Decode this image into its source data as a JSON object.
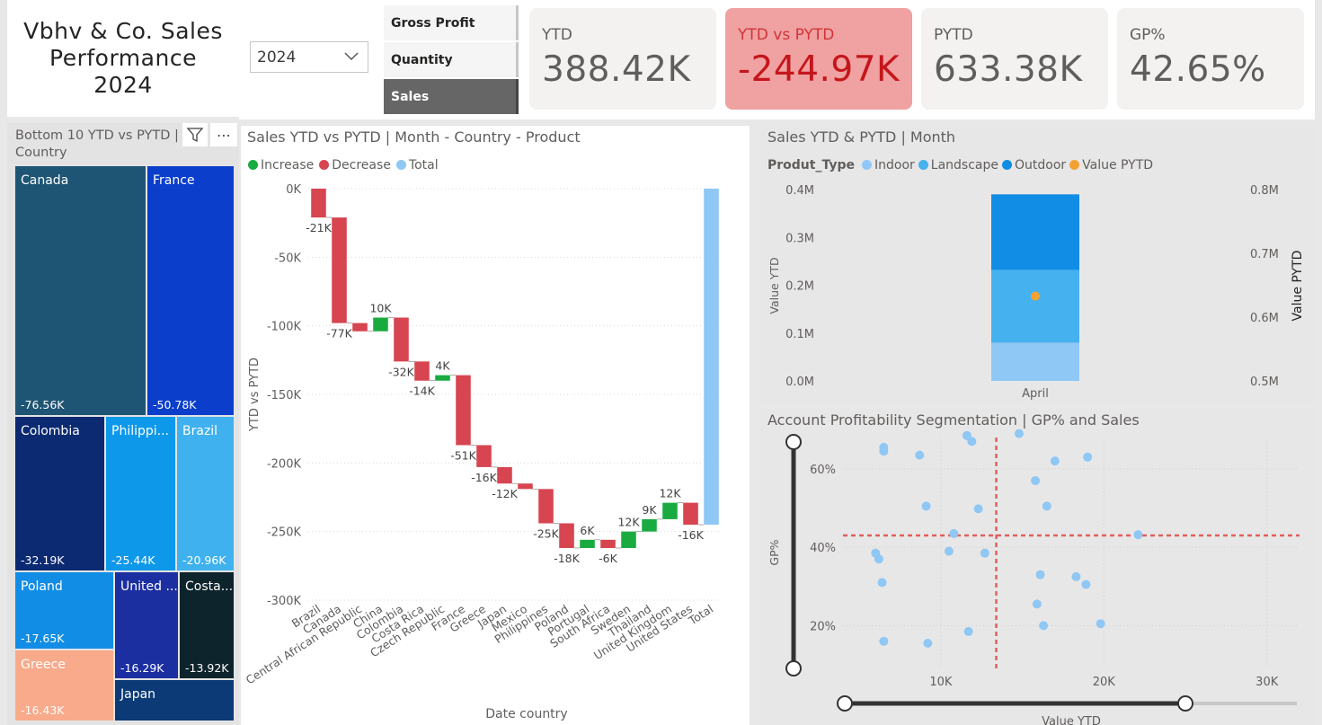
{
  "header": {
    "title": "Vbhv & Co. Sales Performance 2024",
    "year_selected": "2024",
    "buttons": [
      "Gross Profit",
      "Quantity",
      "Sales"
    ],
    "active_button": "Sales"
  },
  "kpis": [
    {
      "label": "YTD",
      "value": "388.42K"
    },
    {
      "label": "YTD vs PYTD",
      "value": "-244.97K"
    },
    {
      "label": "PYTD",
      "value": "633.38K"
    },
    {
      "label": "GP%",
      "value": "42.65%"
    }
  ],
  "colors": {
    "increase": "#1aab40",
    "decrease": "#d64550",
    "total": "#8fc7f5",
    "indoor": "#8fc7f5",
    "landscape": "#45b1ef",
    "outdoor": "#118de5",
    "pytd_marker": "#f2a232",
    "alert_bg": "#f0a1a1"
  },
  "treemap": {
    "title": "Bottom 10 YTD vs PYTD | Country",
    "items": [
      {
        "name": "Canada",
        "value": "-76.56K",
        "color": "#1e5574"
      },
      {
        "name": "France",
        "value": "-50.78K",
        "color": "#0a3ecb"
      },
      {
        "name": "Colombia",
        "value": "-32.19K",
        "color": "#0b2a72"
      },
      {
        "name": "Philippi...",
        "value": "-25.44K",
        "color": "#0e98ea"
      },
      {
        "name": "Brazil",
        "value": "-20.96K",
        "color": "#3fb1ef"
      },
      {
        "name": "Poland",
        "value": "-17.65K",
        "color": "#118de5"
      },
      {
        "name": "United ...",
        "value": "-16.29K",
        "color": "#1c2fa1"
      },
      {
        "name": "Costa...",
        "value": "-13.92K",
        "color": "#0e242c"
      },
      {
        "name": "Greece",
        "value": "-16.43K",
        "color": "#f8aa8a"
      },
      {
        "name": "Japan",
        "value": "",
        "color": "#0b3a77"
      }
    ]
  },
  "waterfall": {
    "title": "Sales YTD vs PYTD | Month - Country - Product",
    "legend": [
      "Increase",
      "Decrease",
      "Total"
    ]
  },
  "combo": {
    "title": "Sales YTD & PYTD | Month",
    "legend_title": "Produt_Type",
    "legend": [
      "Indoor",
      "Landscape",
      "Outdoor",
      "Value PYTD"
    ]
  },
  "scatter": {
    "title": "Account Profitability Segmentation | GP% and Sales"
  },
  "chart_data": [
    {
      "type": "bar",
      "subtype": "waterfall",
      "title": "Sales YTD vs PYTD | Month - Country - Product",
      "xlabel": "Date country",
      "ylabel": "YTD vs PYTD",
      "ylim": [
        -300000,
        0
      ],
      "yticks": [
        "0K",
        "-50K",
        "-100K",
        "-150K",
        "-200K",
        "-250K",
        "-300K"
      ],
      "categories": [
        "Brazil",
        "Canada",
        "Central African Republic",
        "China",
        "Colombia",
        "Costa Rica",
        "Czech Republic",
        "France",
        "Greece",
        "Japan",
        "Mexico",
        "Philippines",
        "Poland",
        "Portugal",
        "South Africa",
        "Sweden",
        "Thailand",
        "United Kingdom",
        "United States",
        "Total"
      ],
      "values": [
        -21000,
        -77000,
        -6000,
        10000,
        -32000,
        -14000,
        4000,
        -51000,
        -16000,
        -12000,
        -4000,
        -25000,
        -18000,
        6000,
        -6000,
        12000,
        9000,
        12000,
        -16000,
        -245000
      ],
      "labels": [
        "-21K",
        "-77K",
        "",
        "10K",
        "-32K",
        "-14K",
        "4K",
        "-51K",
        "-16K",
        "-12K",
        "",
        "-25K",
        "-18K",
        "6K",
        "-6K",
        "12K",
        "9K",
        "12K",
        "-16K",
        ""
      ],
      "legend": [
        "Increase",
        "Decrease",
        "Total"
      ],
      "grid": true
    },
    {
      "type": "bar",
      "subtype": "stacked-combo",
      "title": "Sales YTD & PYTD | Month",
      "categories": [
        "April"
      ],
      "series": [
        {
          "name": "Indoor",
          "values": [
            80000
          ]
        },
        {
          "name": "Landscape",
          "values": [
            152000
          ]
        },
        {
          "name": "Outdoor",
          "values": [
            158000
          ]
        },
        {
          "name": "Value PYTD",
          "values": [
            633000
          ],
          "axis": "secondary"
        }
      ],
      "ylabel": "Value YTD",
      "ylim": [
        0,
        400000
      ],
      "yticks": [
        "0.0M",
        "0.1M",
        "0.2M",
        "0.3M",
        "0.4M"
      ],
      "y2label": "Value PYTD",
      "y2lim": [
        500000,
        800000
      ],
      "y2ticks": [
        "0.5M",
        "0.6M",
        "0.7M",
        "0.8M"
      ]
    },
    {
      "type": "scatter",
      "title": "Account Profitability Segmentation | GP% and Sales",
      "xlabel": "Value YTD",
      "ylabel": "GP%",
      "xlim": [
        4000,
        32000
      ],
      "ylim": [
        10,
        68
      ],
      "xticks": [
        "10K",
        "20K",
        "30K"
      ],
      "yticks": [
        "20%",
        "40%",
        "60%"
      ],
      "reference_lines": {
        "x": 13400,
        "y": 43
      },
      "points": [
        [
          6.5,
          65.5
        ],
        [
          6.5,
          64.5
        ],
        [
          8.7,
          63.5
        ],
        [
          9.1,
          50.5
        ],
        [
          11.6,
          68.5
        ],
        [
          11.9,
          67
        ],
        [
          14.8,
          69
        ],
        [
          17.0,
          62
        ],
        [
          19.0,
          63
        ],
        [
          12.3,
          49.8
        ],
        [
          15.8,
          57
        ],
        [
          16.5,
          50.5
        ],
        [
          6.0,
          38.5
        ],
        [
          6.2,
          37
        ],
        [
          6.4,
          31
        ],
        [
          10.5,
          39
        ],
        [
          10.8,
          43.5
        ],
        [
          12.7,
          38.5
        ],
        [
          16.1,
          33
        ],
        [
          18.3,
          32.5
        ],
        [
          18.9,
          30.5
        ],
        [
          15.9,
          25.5
        ],
        [
          16.3,
          20
        ],
        [
          19.8,
          20.5
        ],
        [
          22.1,
          43.2
        ],
        [
          6.5,
          16
        ],
        [
          9.2,
          15.5
        ],
        [
          11.7,
          18.5
        ]
      ],
      "grid": true
    }
  ]
}
